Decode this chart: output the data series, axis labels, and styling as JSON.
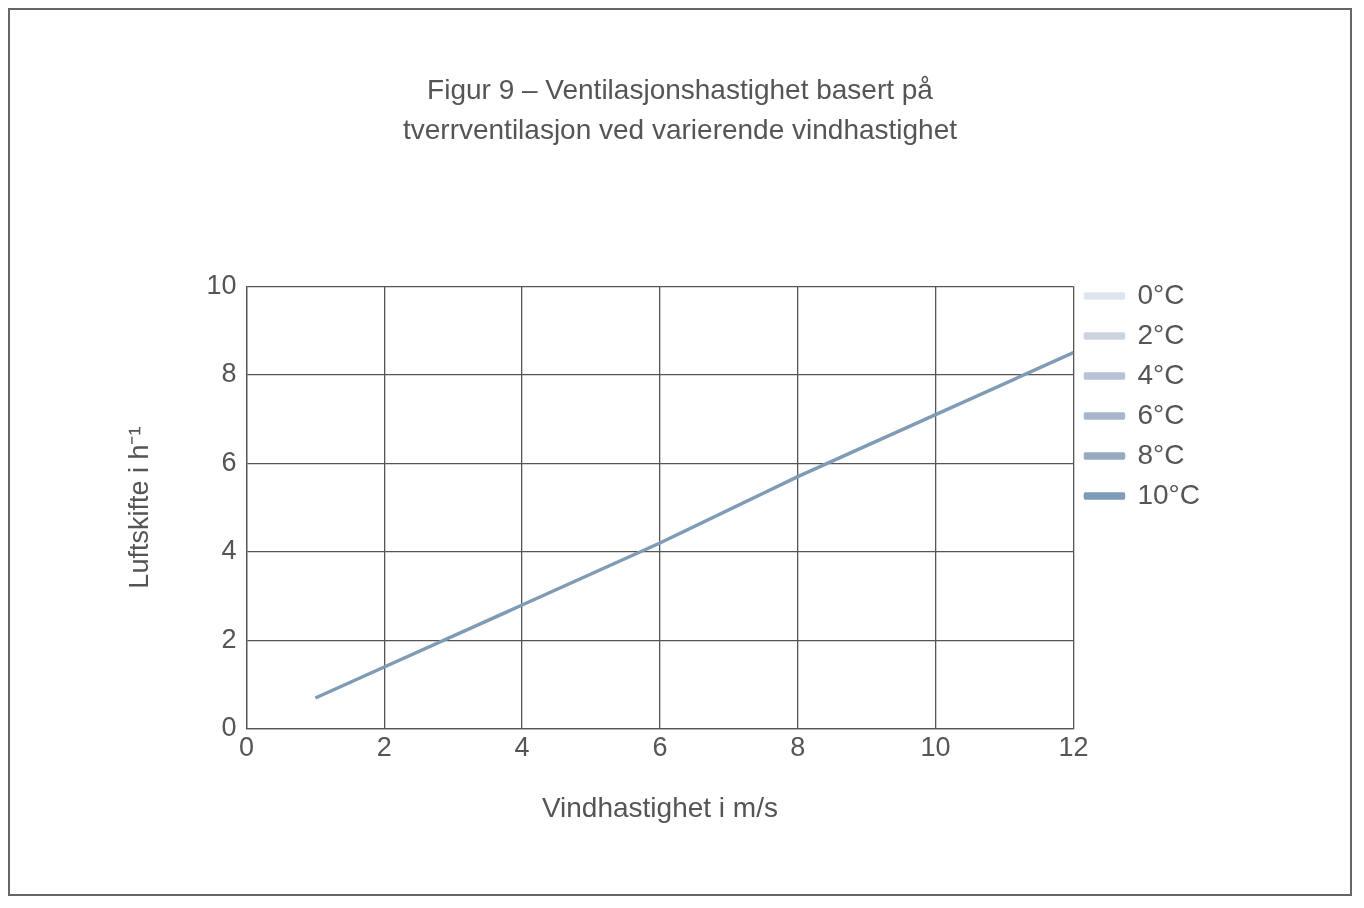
{
  "chart_data": {
    "type": "line",
    "title": "Figur 9 – Ventilasjonshastighet basert på tverrventilasjon ved varierende vindhastighet",
    "xlabel": "Vindhastighet i m/s",
    "ylabel": "Luftskifte i h⁻¹",
    "x": [
      1,
      2,
      4,
      6,
      8,
      10,
      12
    ],
    "xlim": [
      0,
      12
    ],
    "xticks": [
      0,
      2,
      4,
      6,
      8,
      10,
      12
    ],
    "ylim": [
      0,
      10
    ],
    "yticks": [
      0,
      2,
      4,
      6,
      8,
      10
    ],
    "grid": true,
    "legend": "right",
    "marker": "none",
    "series": [
      {
        "name": "0°C",
        "color": "#dfe5ee",
        "values": [
          null,
          null,
          null,
          null,
          null,
          null,
          null
        ]
      },
      {
        "name": "2°C",
        "color": "#cbd4e1",
        "values": [
          null,
          null,
          null,
          null,
          null,
          null,
          null
        ]
      },
      {
        "name": "4°C",
        "color": "#b7c3d5",
        "values": [
          null,
          null,
          null,
          null,
          null,
          null,
          null
        ]
      },
      {
        "name": "6°C",
        "color": "#a7b6cb",
        "values": [
          null,
          null,
          null,
          null,
          null,
          null,
          null
        ]
      },
      {
        "name": "8°C",
        "color": "#97a9c1",
        "values": [
          null,
          null,
          null,
          null,
          null,
          null,
          null
        ]
      },
      {
        "name": "10°C",
        "color": "#7f9bb5",
        "values": [
          0.7,
          1.4,
          2.8,
          4.2,
          5.7,
          7.1,
          8.5
        ]
      }
    ]
  }
}
